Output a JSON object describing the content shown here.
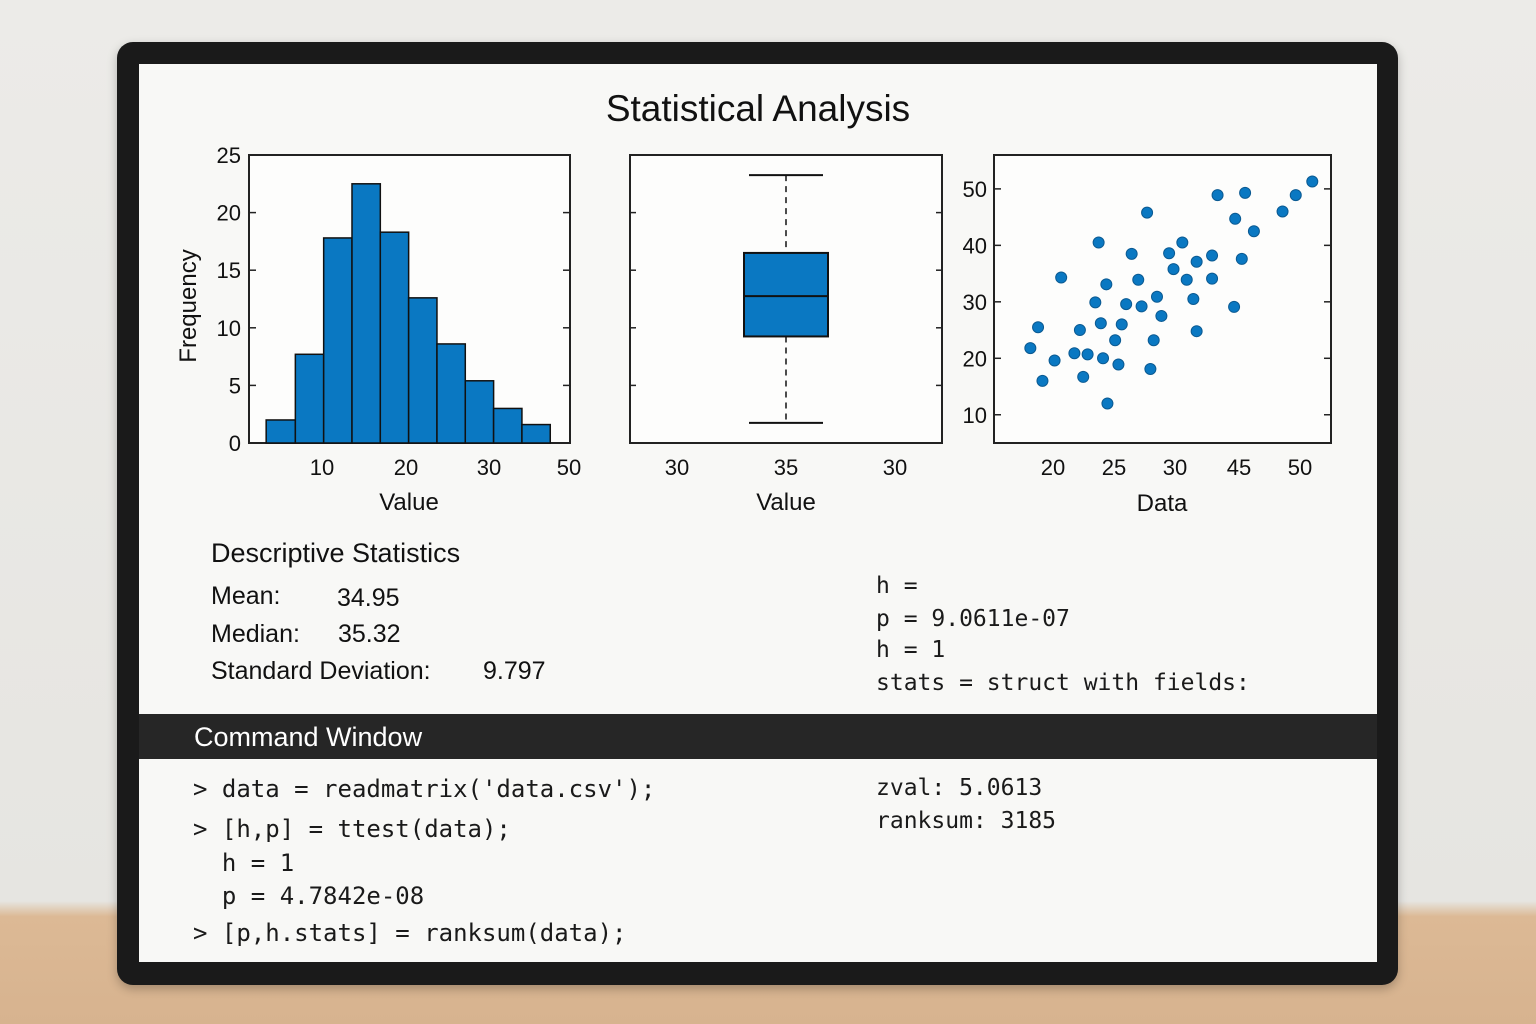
{
  "window": {
    "title": "Statistical Analysis"
  },
  "chart_data": [
    {
      "type": "bar",
      "subtype": "histogram",
      "xlabel": "Value",
      "ylabel": "Frequency",
      "xticks": [
        "10",
        "20",
        "30",
        "50"
      ],
      "yticks": [
        "0",
        "5",
        "10",
        "15",
        "20",
        "25"
      ],
      "ylim": [
        0,
        25
      ],
      "bins": [
        {
          "x0": 2,
          "x1": 5.4,
          "value": 2
        },
        {
          "x0": 5.4,
          "x1": 8.7,
          "value": 7.7
        },
        {
          "x0": 8.7,
          "x1": 12,
          "value": 17.8
        },
        {
          "x0": 12,
          "x1": 15.3,
          "value": 22.5
        },
        {
          "x0": 15.3,
          "x1": 18.6,
          "value": 18.3
        },
        {
          "x0": 18.6,
          "x1": 21.9,
          "value": 12.6
        },
        {
          "x0": 21.9,
          "x1": 25.2,
          "value": 8.6
        },
        {
          "x0": 25.2,
          "x1": 28.5,
          "value": 5.4
        },
        {
          "x0": 28.5,
          "x1": 31.8,
          "value": 3
        },
        {
          "x0": 31.8,
          "x1": 35.1,
          "value": 1.6
        }
      ],
      "color": "#0a78c2",
      "grid": false
    },
    {
      "type": "box",
      "xlabel": "Value",
      "xticks": [
        "30",
        "35",
        "30"
      ],
      "box": {
        "whisker_high": 0.93,
        "q3": 0.66,
        "median": 0.51,
        "q1": 0.37,
        "whisker_low": 0.07
      },
      "color": "#0a78c2",
      "grid": false
    },
    {
      "type": "scatter",
      "xlabel": "Data",
      "xticks": [
        "20",
        "25",
        "30",
        "45",
        "50"
      ],
      "yticks": [
        "10",
        "20",
        "30",
        "40",
        "50"
      ],
      "ylim": [
        5,
        56
      ],
      "color": "#0a78c2",
      "grid": false,
      "points": [
        [
          16.7,
          21.8
        ],
        [
          17.4,
          25.5
        ],
        [
          17.8,
          16
        ],
        [
          18.9,
          19.6
        ],
        [
          19.5,
          34.3
        ],
        [
          20.7,
          20.9
        ],
        [
          21.2,
          25
        ],
        [
          21.5,
          16.7
        ],
        [
          21.9,
          20.7
        ],
        [
          22.6,
          29.9
        ],
        [
          22.9,
          40.5
        ],
        [
          23.1,
          26.2
        ],
        [
          23.3,
          20
        ],
        [
          23.6,
          33.1
        ],
        [
          23.7,
          12
        ],
        [
          24.4,
          23.2
        ],
        [
          24.7,
          18.9
        ],
        [
          25,
          26
        ],
        [
          25.4,
          29.6
        ],
        [
          25.9,
          38.5
        ],
        [
          26.5,
          33.9
        ],
        [
          26.8,
          29.2
        ],
        [
          27.3,
          45.8
        ],
        [
          27.6,
          18.1
        ],
        [
          27.9,
          23.2
        ],
        [
          28.2,
          30.9
        ],
        [
          28.6,
          27.5
        ],
        [
          29.3,
          38.6
        ],
        [
          29.7,
          35.8
        ],
        [
          30.5,
          40.5
        ],
        [
          30.9,
          33.9
        ],
        [
          31.5,
          30.5
        ],
        [
          31.8,
          37.1
        ],
        [
          31.8,
          24.8
        ],
        [
          33.2,
          34.1
        ],
        [
          33.2,
          38.2
        ],
        [
          33.7,
          48.9
        ],
        [
          35.2,
          29.1
        ],
        [
          35.3,
          44.7
        ],
        [
          35.9,
          37.6
        ],
        [
          36.2,
          49.3
        ],
        [
          37,
          42.5
        ],
        [
          39.6,
          46
        ],
        [
          40.8,
          48.9
        ],
        [
          42.3,
          51.3
        ]
      ]
    }
  ],
  "stats": {
    "heading": "Descriptive Statistics",
    "mean_label": "Mean:",
    "mean_value": "34.95",
    "median_label": "Median:",
    "median_value": "35.32",
    "std_label": "Standard Deviation:",
    "std_value": "9.797"
  },
  "output": {
    "lines": [
      "h =",
      "p = 9.0611e-07",
      "h = 1",
      "stats = struct with fields:"
    ]
  },
  "command_window": {
    "title": "Command Window",
    "lines": [
      "> data = readmatrix('data.csv');",
      "> [h,p] = ttest(data);",
      "  h = 1",
      "  p = 4.7842e-08",
      "> [p,h.stats] = ranksum(data);"
    ],
    "right_lines": [
      "zval: 5.0613",
      "ranksum: 3185"
    ]
  }
}
